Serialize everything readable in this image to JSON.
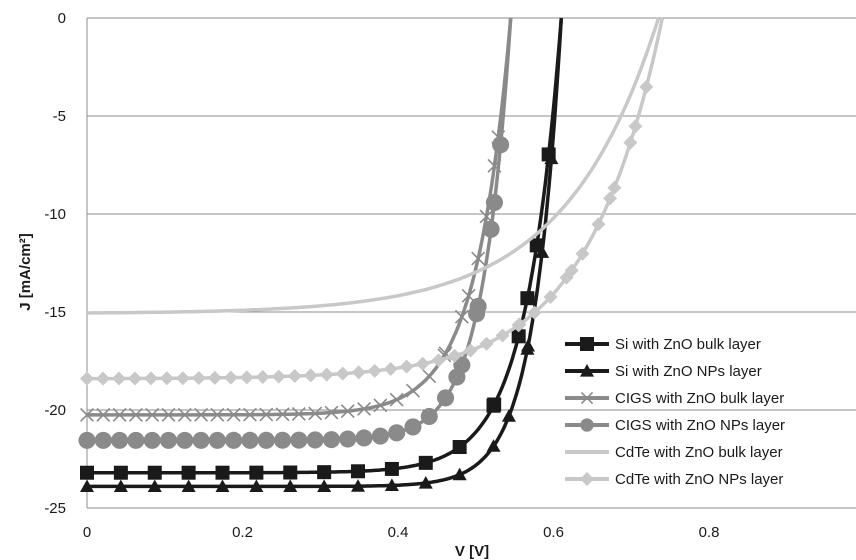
{
  "chart_data": {
    "type": "line",
    "title": "",
    "xlabel": "V [V]",
    "ylabel": "J [mA/cm²]",
    "xlim": [
      0,
      1
    ],
    "ylim": [
      -25,
      0
    ],
    "xticks": [
      0,
      0.2,
      0.4,
      0.6,
      0.8
    ],
    "xtick_labels": [
      "0",
      "0.2",
      "0.4",
      "0.6",
      "0.8"
    ],
    "yticks": [
      0,
      -5,
      -10,
      -15,
      -20,
      -25
    ],
    "ytick_labels": [
      "0",
      "-5",
      "-10",
      "-15",
      "-20",
      "-25"
    ],
    "grid": "horizontal",
    "legend_position": "bottom-right",
    "series": [
      {
        "name": "Si with ZnO bulk layer",
        "color": "#1a1a1a",
        "marker": "square",
        "jsc": -23.2,
        "voc": 0.61,
        "v0": 0.0455,
        "n": 14
      },
      {
        "name": "Si with ZnO NPs layer",
        "color": "#1a1a1a",
        "marker": "triangle",
        "jsc": -23.9,
        "voc": 0.61,
        "v0": 0.0355,
        "n": 14
      },
      {
        "name": "CIGS with ZnO bulk layer",
        "color": "#8a8a8a",
        "marker": "x",
        "jsc": -20.25,
        "voc": 0.545,
        "v0": 0.045,
        "n": 26,
        "r": 8
      },
      {
        "name": "CIGS with ZnO NPs layer",
        "color": "#8a8a8a",
        "marker": "circle",
        "jsc": -21.55,
        "voc": 0.545,
        "v0": 0.0365,
        "n": 26,
        "r": 9
      },
      {
        "name": "CdTe with ZnO bulk layer",
        "color": "#c8c8c8",
        "marker": "none",
        "jsc": -15.05,
        "voc": 0.735,
        "v0": 0.1195,
        "n": 0
      },
      {
        "name": "CdTe with ZnO NPs layer",
        "color": "#c8c8c8",
        "marker": "diamond",
        "jsc": -18.4,
        "voc": 0.74,
        "v0": 0.097,
        "n": 36
      }
    ]
  }
}
